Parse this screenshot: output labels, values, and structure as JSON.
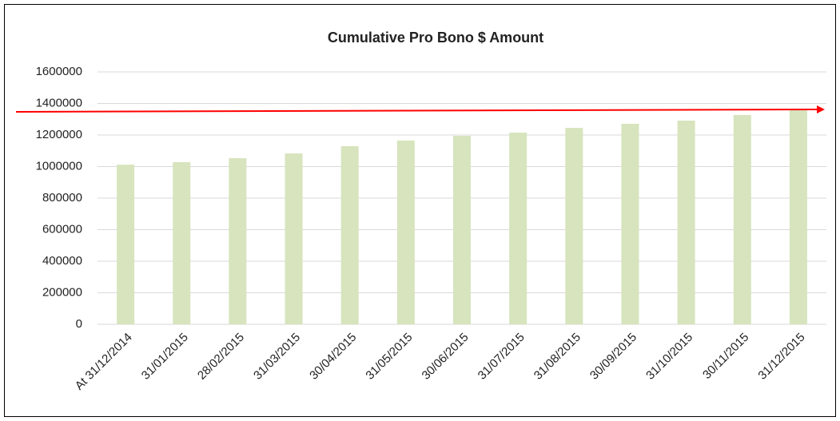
{
  "chart_data": {
    "type": "bar",
    "title": "Cumulative Pro Bono $ Amount",
    "categories": [
      "At 31/12/2014",
      "31/01/2015",
      "28/02/2015",
      "31/03/2015",
      "30/04/2015",
      "31/05/2015",
      "30/06/2015",
      "31/07/2015",
      "31/08/2015",
      "30/09/2015",
      "31/10/2015",
      "30/11/2015",
      "31/12/2015"
    ],
    "values": [
      1012000,
      1028000,
      1053000,
      1083000,
      1129000,
      1165000,
      1195000,
      1215000,
      1245000,
      1271000,
      1291000,
      1327000,
      1357000
    ],
    "color": "#d7e4bd",
    "ylim": [
      0,
      1600000
    ],
    "yticks": [
      0,
      200000,
      400000,
      600000,
      800000,
      1000000,
      1200000,
      1400000,
      1600000
    ],
    "grid": true
  }
}
